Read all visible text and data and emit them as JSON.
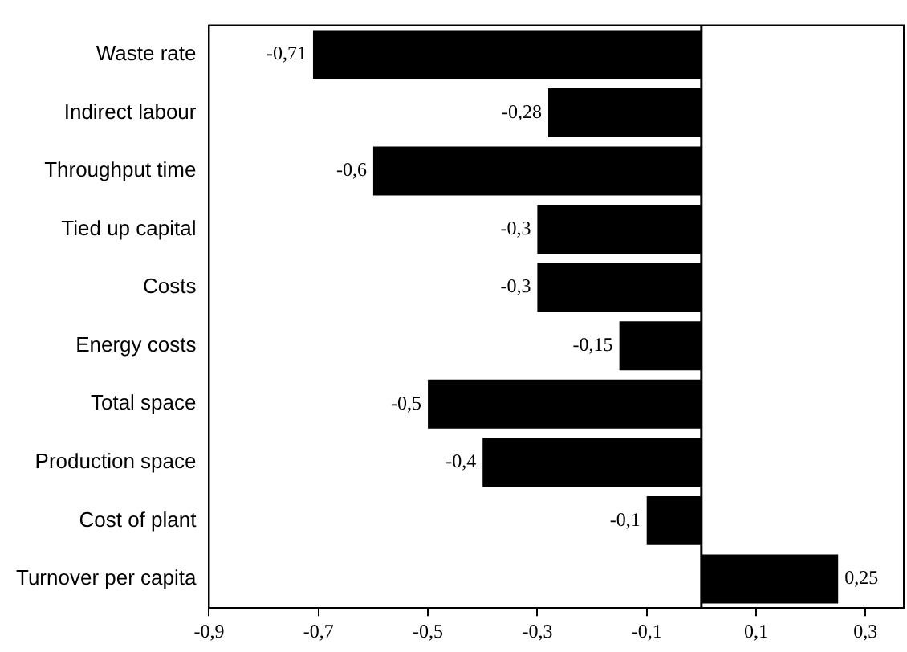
{
  "chart_data": {
    "type": "bar",
    "orientation": "horizontal",
    "categories": [
      "Waste rate",
      "Indirect labour",
      "Throughput time",
      "Tied up capital",
      "Costs",
      "Energy costs",
      "Total space",
      "Production space",
      "Cost of plant",
      "Turnover per capita"
    ],
    "values": [
      -0.71,
      -0.28,
      -0.6,
      -0.3,
      -0.3,
      -0.15,
      -0.5,
      -0.4,
      -0.1,
      0.25
    ],
    "value_labels": [
      "-0,71",
      "-0,28",
      "-0,6",
      "-0,3",
      "-0,3",
      "-0,15",
      "-0,5",
      "-0,4",
      "-0,1",
      "0,25"
    ],
    "color": "#000000",
    "xlim": [
      -0.9,
      0.37
    ],
    "xticks": [
      {
        "value": -0.9,
        "label": "-0,9"
      },
      {
        "value": -0.7,
        "label": "-0,7"
      },
      {
        "value": -0.5,
        "label": "-0,5"
      },
      {
        "value": -0.3,
        "label": "-0,3"
      },
      {
        "value": -0.1,
        "label": "-0,1"
      },
      {
        "value": 0.1,
        "label": "0,1"
      },
      {
        "value": 0.3,
        "label": "0,3"
      }
    ],
    "ref_lines": [
      {
        "axis": "x",
        "value": 0,
        "color": "#000000"
      }
    ],
    "grid": false,
    "legend": false
  }
}
